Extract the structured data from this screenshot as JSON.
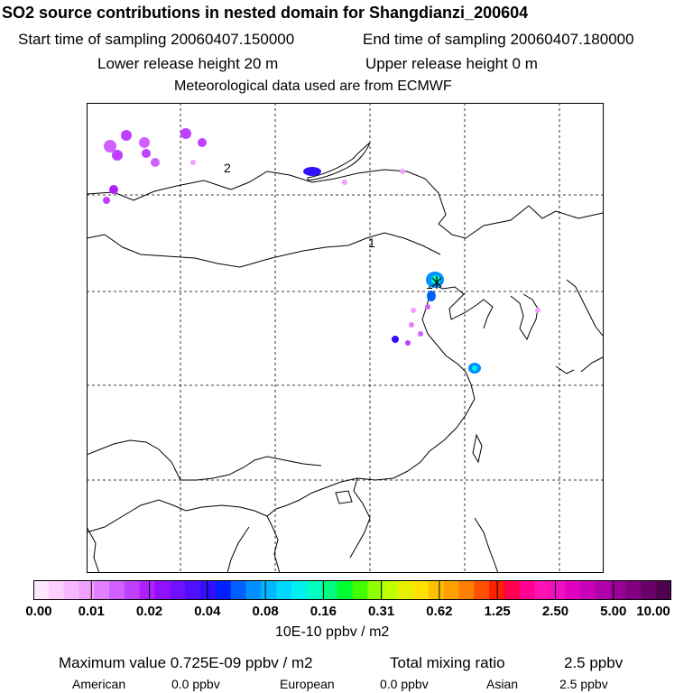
{
  "header": {
    "title": "SO2 source contributions in nested domain for Shangdianzi_200604",
    "start_time": "Start time of sampling 20060407.150000",
    "end_time": "End time of sampling 20060407.180000",
    "lower_release": "Lower release height   20 m",
    "upper_release": "Upper release height    0 m",
    "met_data": "Meteorological data used are from ECMWF"
  },
  "map": {
    "region_labels": [
      "2",
      "1",
      "1"
    ]
  },
  "colorbar": {
    "tick_labels": [
      "0.00",
      "0.01",
      "0.02",
      "0.04",
      "0.08",
      "0.16",
      "0.31",
      "0.62",
      "1.25",
      "2.50",
      "5.00",
      "10.00"
    ],
    "unit": "10E-10 ppbv / m2",
    "colors": [
      "#ffe8ff",
      "#ffd0ff",
      "#f8b8ff",
      "#f0a0ff",
      "#e080ff",
      "#d060ff",
      "#c040ff",
      "#b020ff",
      "#9010ff",
      "#7010ff",
      "#5010ff",
      "#3010ff",
      "#0020ff",
      "#0060ff",
      "#0090ff",
      "#00b8ff",
      "#00d8ff",
      "#00f0f0",
      "#00ffc0",
      "#00ff80",
      "#00ff30",
      "#40ff00",
      "#90ff00",
      "#c0ff00",
      "#e8f000",
      "#ffe000",
      "#ffc000",
      "#ffa000",
      "#ff8000",
      "#ff5000",
      "#ff2000",
      "#ff0050",
      "#ff0090",
      "#ff10b0",
      "#f010c0",
      "#e000c0",
      "#c800b8",
      "#b000a8",
      "#980098",
      "#800080",
      "#680068",
      "#500050"
    ]
  },
  "footer": {
    "max_value": "Maximum value  0.725E-09 ppbv / m2",
    "total_mixing_label": "Total mixing ratio",
    "total_mixing_value": "2.5 ppbv",
    "sources": [
      {
        "label": "American",
        "value": "0.0 ppbv"
      },
      {
        "label": "European",
        "value": "0.0 ppbv"
      },
      {
        "label": "Asian",
        "value": "2.5 ppbv"
      }
    ]
  }
}
